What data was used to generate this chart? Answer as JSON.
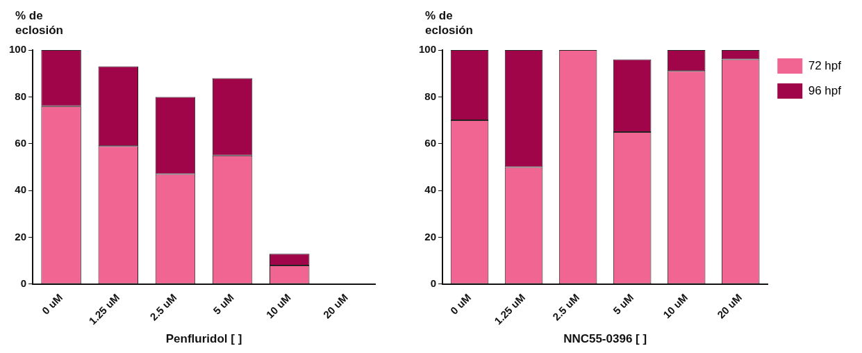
{
  "chart_data": [
    {
      "type": "bar",
      "stacked": true,
      "ylabel": "% de eclosión",
      "xlabel": "Penfluridol [ ]",
      "categories": [
        "0 uM",
        "1.25 uM",
        "2.5 uM",
        "5 uM",
        "10 uM",
        "20 uM"
      ],
      "ylim": [
        0,
        100
      ],
      "yticks": [
        0,
        20,
        40,
        60,
        80,
        100
      ],
      "grid": false,
      "legend": false,
      "series": [
        {
          "color": "#f06592",
          "values": [
            76,
            59,
            47,
            55,
            8,
            0
          ]
        },
        {
          "color": "#a0054a",
          "values": [
            24,
            34,
            33,
            33,
            5,
            0
          ]
        }
      ]
    },
    {
      "type": "bar",
      "stacked": true,
      "ylabel": "% de eclosión",
      "xlabel": "NNC55-0396 [ ]",
      "categories": [
        "0 uM",
        "1.25 uM",
        "2.5 uM",
        "5 uM",
        "10 uM",
        "20 uM"
      ],
      "ylim": [
        0,
        100
      ],
      "yticks": [
        0,
        20,
        40,
        60,
        80,
        100
      ],
      "grid": false,
      "legend": "right",
      "series": [
        {
          "name": "72 hpf",
          "color": "#f06592",
          "values": [
            70,
            50,
            100,
            65,
            91,
            96
          ]
        },
        {
          "name": "96 hpf",
          "color": "#a0054a",
          "values": [
            30,
            50,
            0,
            31,
            9,
            4
          ]
        }
      ]
    }
  ]
}
